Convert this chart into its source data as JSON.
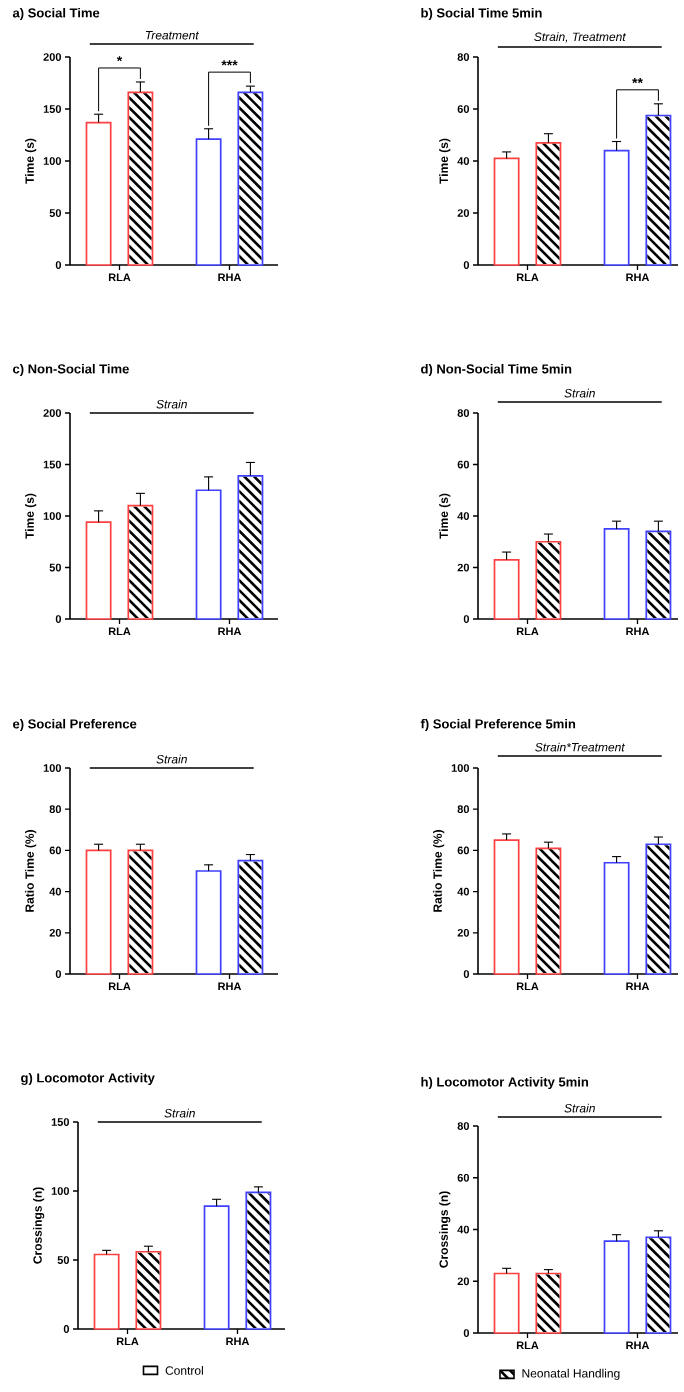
{
  "chart_data": [
    {
      "type": "bar",
      "title": "a) Social Time",
      "ylabel": "Time (s)",
      "categories": [
        "RLA",
        "RHA"
      ],
      "ylim": [
        0,
        200
      ],
      "yticks": [
        0,
        50,
        100,
        150,
        200
      ],
      "annotations": [
        "Treatment",
        "*",
        "***"
      ],
      "series": [
        {
          "color": "#000000",
          "colors": [
            "#ff4040",
            "#4040ff"
          ],
          "values": [
            137,
            121
          ],
          "errors": [
            [
              137,
              145
            ],
            [
              121,
              131
            ]
          ]
        },
        {
          "color": "#000000",
          "colors": [
            "#ff4040",
            "#4040ff"
          ],
          "values": [
            166,
            166
          ],
          "errors": [
            [
              166,
              176
            ],
            [
              166,
              172
            ]
          ]
        }
      ]
    },
    {
      "type": "bar",
      "title": "b) Social Time 5min",
      "ylabel": "Time (s)",
      "categories": [
        "RLA",
        "RHA"
      ],
      "ylim": [
        0,
        80
      ],
      "yticks": [
        0,
        20,
        40,
        60,
        80
      ],
      "annotations": [
        "Strain, Treatment",
        "**"
      ],
      "series": [
        {
          "color": "#000000",
          "colors": [
            "#ff4040",
            "#4040ff"
          ],
          "values": [
            41,
            44
          ],
          "errors": [
            [
              41,
              43.5
            ],
            [
              44,
              47.5
            ]
          ]
        },
        {
          "color": "#000000",
          "colors": [
            "#ff4040",
            "#4040ff"
          ],
          "values": [
            47,
            57.5
          ],
          "errors": [
            [
              47,
              50.5
            ],
            [
              57.5,
              62
            ]
          ]
        }
      ]
    },
    {
      "type": "bar",
      "title": "c) Non-Social Time",
      "ylabel": "Time (s)",
      "categories": [
        "RLA",
        "RHA"
      ],
      "ylim": [
        0,
        200
      ],
      "yticks": [
        0,
        50,
        100,
        150,
        200
      ],
      "annotations": [
        "Strain"
      ],
      "series": [
        {
          "color": "#000000",
          "colors": [
            "#ff4040",
            "#4040ff"
          ],
          "values": [
            94,
            125
          ],
          "errors": [
            [
              94,
              105
            ],
            [
              125,
              138
            ]
          ]
        },
        {
          "color": "#000000",
          "colors": [
            "#ff4040",
            "#4040ff"
          ],
          "values": [
            110,
            139
          ],
          "errors": [
            [
              110,
              122
            ],
            [
              139,
              152
            ]
          ]
        }
      ]
    },
    {
      "type": "bar",
      "title": "d) Non-Social Time 5min",
      "ylabel": "Time (s)",
      "categories": [
        "RLA",
        "RHA"
      ],
      "ylim": [
        0,
        80
      ],
      "yticks": [
        0,
        20,
        40,
        60,
        80
      ],
      "annotations": [
        "Strain"
      ],
      "series": [
        {
          "color": "#000000",
          "colors": [
            "#ff4040",
            "#4040ff"
          ],
          "values": [
            23,
            35
          ],
          "errors": [
            [
              23,
              26
            ],
            [
              35,
              38
            ]
          ]
        },
        {
          "color": "#000000",
          "colors": [
            "#ff4040",
            "#4040ff"
          ],
          "values": [
            30,
            34
          ],
          "errors": [
            [
              30,
              33
            ],
            [
              34,
              38
            ]
          ]
        }
      ]
    },
    {
      "type": "bar",
      "title": "e) Social Preference",
      "ylabel": "Ratio Time (%)",
      "categories": [
        "RLA",
        "RHA"
      ],
      "ylim": [
        0,
        100
      ],
      "yticks": [
        0,
        20,
        40,
        60,
        80,
        100
      ],
      "annotations": [
        "Strain"
      ],
      "series": [
        {
          "color": "#000000",
          "colors": [
            "#ff4040",
            "#4040ff"
          ],
          "values": [
            60,
            50
          ],
          "errors": [
            [
              60,
              63
            ],
            [
              50,
              53
            ]
          ]
        },
        {
          "color": "#000000",
          "colors": [
            "#ff4040",
            "#4040ff"
          ],
          "values": [
            60,
            55
          ],
          "errors": [
            [
              60,
              63
            ],
            [
              55,
              58
            ]
          ]
        }
      ]
    },
    {
      "type": "bar",
      "title": "f) Social Preference 5min",
      "ylabel": "Ratio Time (%)",
      "categories": [
        "RLA",
        "RHA"
      ],
      "ylim": [
        0,
        100
      ],
      "yticks": [
        0,
        20,
        40,
        60,
        80,
        100
      ],
      "annotations": [
        "Strain*Treatment"
      ],
      "series": [
        {
          "color": "#000000",
          "colors": [
            "#ff4040",
            "#4040ff"
          ],
          "values": [
            65,
            54
          ],
          "errors": [
            [
              65,
              68
            ],
            [
              54,
              57
            ]
          ]
        },
        {
          "color": "#000000",
          "colors": [
            "#ff4040",
            "#4040ff"
          ],
          "values": [
            61,
            63
          ],
          "errors": [
            [
              61,
              64
            ],
            [
              63,
              66.5
            ]
          ]
        }
      ]
    },
    {
      "type": "bar",
      "title": "g) Locomotor Activity",
      "ylabel": "Crossings (n)",
      "categories": [
        "RLA",
        "RHA"
      ],
      "ylim": [
        0,
        150
      ],
      "yticks": [
        0,
        50,
        100,
        150
      ],
      "annotations": [
        "Strain"
      ],
      "legend": "bottom",
      "series": [
        {
          "name": "Control",
          "color": "#000000",
          "colors": [
            "#ff4040",
            "#4040ff"
          ],
          "values": [
            54,
            89
          ],
          "errors": [
            [
              54,
              57
            ],
            [
              89,
              94
            ]
          ]
        },
        {
          "color": "#000000",
          "colors": [
            "#ff4040",
            "#4040ff"
          ],
          "values": [
            56,
            99
          ],
          "errors": [
            [
              56,
              60
            ],
            [
              99,
              103
            ]
          ]
        }
      ]
    },
    {
      "type": "bar",
      "title": "h) Locomotor Activity 5min",
      "ylabel": "Crossings (n)",
      "categories": [
        "RLA",
        "RHA"
      ],
      "ylim": [
        0,
        80
      ],
      "yticks": [
        0,
        20,
        40,
        60,
        80
      ],
      "annotations": [
        "Strain"
      ],
      "legend": "bottom",
      "series": [
        {
          "color": "#000000",
          "colors": [
            "#ff4040",
            "#4040ff"
          ],
          "values": [
            23,
            35.5
          ],
          "errors": [
            [
              23,
              25
            ],
            [
              35.5,
              38
            ]
          ]
        },
        {
          "name": "Neonatal Handling",
          "color": "#000000",
          "colors": [
            "#ff4040",
            "#4040ff"
          ],
          "values": [
            23,
            37
          ],
          "errors": [
            [
              23,
              24.5
            ],
            [
              37,
              39.5
            ]
          ]
        }
      ]
    }
  ]
}
